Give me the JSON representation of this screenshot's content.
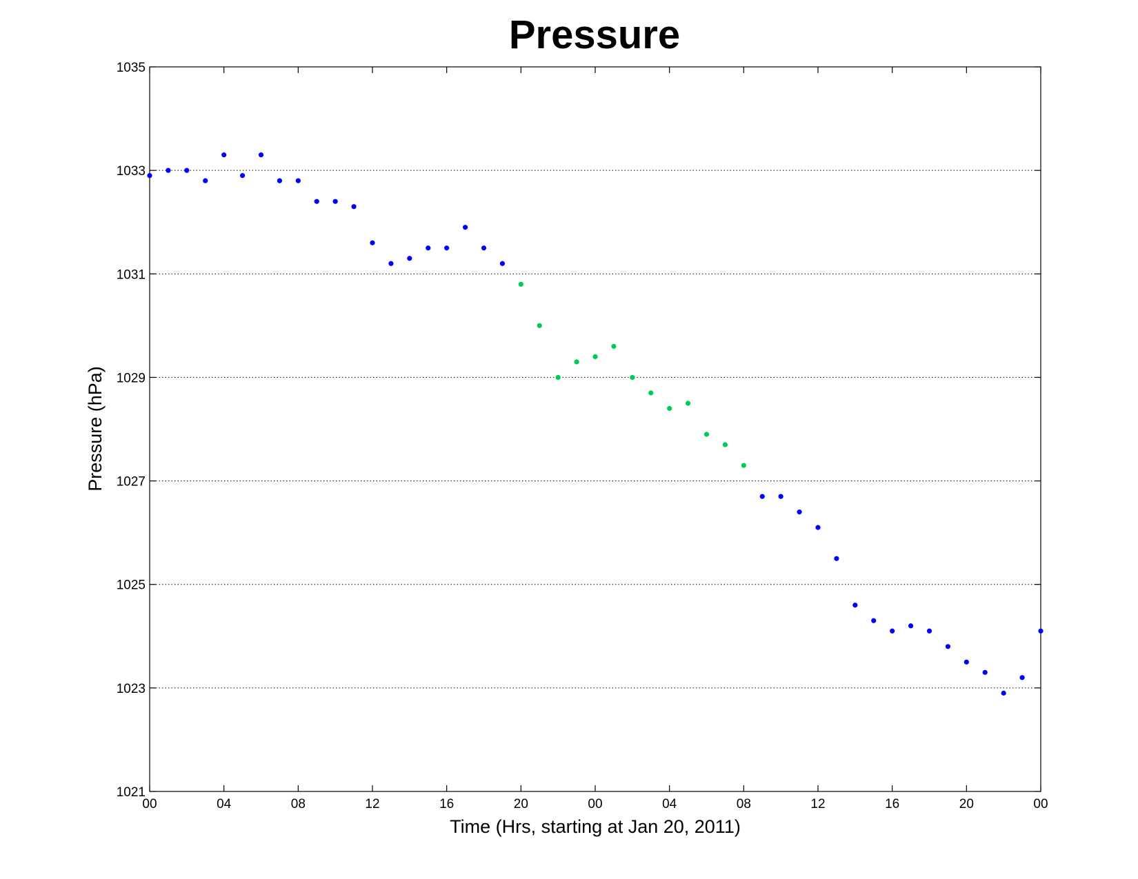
{
  "chart_data": {
    "type": "scatter",
    "title": "Pressure",
    "xlabel": "Time (Hrs, starting at Jan 20, 2011)",
    "ylabel": "Pressure (hPa)",
    "xlim": [
      0,
      48
    ],
    "ylim": [
      1021,
      1035
    ],
    "x_ticks": [
      0,
      4,
      8,
      12,
      16,
      20,
      24,
      28,
      32,
      36,
      40,
      44,
      48
    ],
    "x_tick_labels": [
      "00",
      "04",
      "08",
      "12",
      "16",
      "20",
      "00",
      "04",
      "08",
      "12",
      "16",
      "20",
      "00"
    ],
    "y_ticks": [
      1021,
      1023,
      1025,
      1027,
      1029,
      1031,
      1033,
      1035
    ],
    "y_tick_labels": [
      "1021",
      "1023",
      "1025",
      "1027",
      "1029",
      "1031",
      "1033",
      "1035"
    ],
    "grid": "horizontal-dotted",
    "series": [
      {
        "color": "#0000ff",
        "points": [
          [
            0,
            1032.9
          ],
          [
            1,
            1033.0
          ],
          [
            2,
            1033.0
          ],
          [
            3,
            1032.8
          ],
          [
            4,
            1033.3
          ],
          [
            5,
            1032.9
          ],
          [
            6,
            1033.3
          ],
          [
            7,
            1032.8
          ],
          [
            8,
            1032.8
          ],
          [
            9,
            1032.4
          ],
          [
            10,
            1032.4
          ],
          [
            11,
            1032.3
          ],
          [
            12,
            1031.6
          ],
          [
            13,
            1031.2
          ],
          [
            14,
            1031.3
          ],
          [
            15,
            1031.5
          ],
          [
            16,
            1031.5
          ],
          [
            17,
            1031.9
          ],
          [
            18,
            1031.5
          ],
          [
            19,
            1031.2
          ],
          [
            33,
            1026.7
          ],
          [
            34,
            1026.7
          ],
          [
            35,
            1026.4
          ],
          [
            36,
            1026.1
          ],
          [
            37,
            1025.5
          ],
          [
            38,
            1024.6
          ],
          [
            39,
            1024.3
          ],
          [
            40,
            1024.1
          ],
          [
            41,
            1024.2
          ],
          [
            42,
            1024.1
          ],
          [
            43,
            1023.8
          ],
          [
            44,
            1023.5
          ],
          [
            45,
            1023.3
          ],
          [
            46,
            1022.9
          ],
          [
            47,
            1023.2
          ],
          [
            48,
            1024.1
          ]
        ]
      },
      {
        "color": "#00cc55",
        "points": [
          [
            20,
            1030.8
          ],
          [
            21,
            1030.0
          ],
          [
            22,
            1029.0
          ],
          [
            23,
            1029.3
          ],
          [
            24,
            1029.4
          ],
          [
            25,
            1029.6
          ],
          [
            26,
            1029.0
          ],
          [
            27,
            1028.7
          ],
          [
            28,
            1028.4
          ],
          [
            29,
            1028.5
          ],
          [
            30,
            1027.9
          ],
          [
            31,
            1027.7
          ],
          [
            32,
            1027.3
          ]
        ]
      }
    ]
  }
}
